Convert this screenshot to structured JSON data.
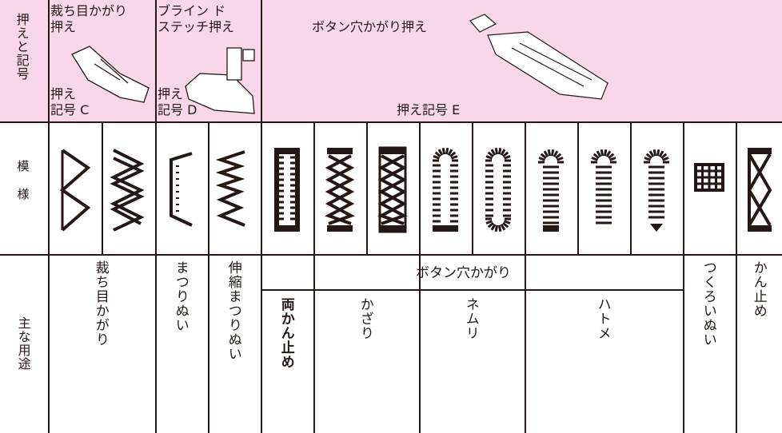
{
  "header": {
    "row_label": "押えと記号",
    "feet": [
      {
        "name": [
          "裁ち目かがり",
          "押え"
        ],
        "symbol": [
          "押え",
          "記号 C"
        ]
      },
      {
        "name": [
          "ブライン ド",
          "ステッチ押え"
        ],
        "symbol": [
          "押え",
          "記号 D"
        ]
      },
      {
        "name": [
          "ボタン穴かがり押え"
        ],
        "symbol": [
          "押え記号 E"
        ]
      }
    ]
  },
  "patterns": {
    "row_label": "模様"
  },
  "usage": {
    "row_label": "主な用途",
    "group": "ボタン穴かがり",
    "items": [
      "裁ち目かがり",
      "まつりぬい",
      "伸縮まつりぬい",
      "両かん止め",
      "かざり",
      "ネムリ",
      "ハトメ",
      "つくろいぬい",
      "かん止め"
    ]
  }
}
